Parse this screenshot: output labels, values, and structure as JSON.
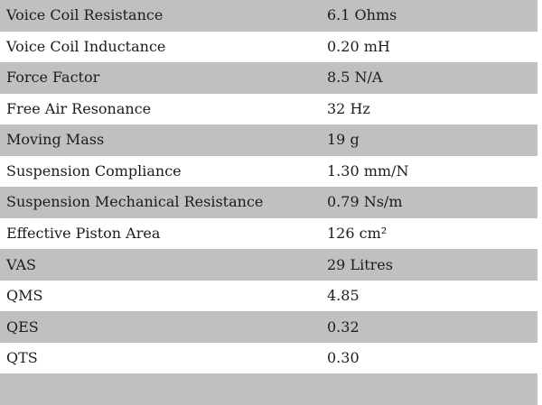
{
  "table": {
    "rows": [
      {
        "label": "Voice Coil Resistance",
        "value": "6.1 Ohms"
      },
      {
        "label": "Voice Coil Inductance",
        "value": "0.20 mH"
      },
      {
        "label": "Force Factor",
        "value": "8.5 N/A"
      },
      {
        "label": "Free Air Resonance",
        "value": "32 Hz"
      },
      {
        "label": "Moving Mass",
        "value": "19 g"
      },
      {
        "label": "Suspension Compliance",
        "value": "1.30 mm/N"
      },
      {
        "label": "Suspension Mechanical Resistance",
        "value": "0.79 Ns/m"
      },
      {
        "label": "Effective Piston Area",
        "value": "126 cm²"
      },
      {
        "label": "VAS",
        "value": "29 Litres"
      },
      {
        "label": "QMS",
        "value": "4.85"
      },
      {
        "label": "QES",
        "value": "0.32"
      },
      {
        "label": "QTS",
        "value": "0.30"
      }
    ],
    "colors": {
      "row_alt": "#c0c0c0",
      "row_base": "#ffffff",
      "text": "#1c1c1c"
    }
  }
}
